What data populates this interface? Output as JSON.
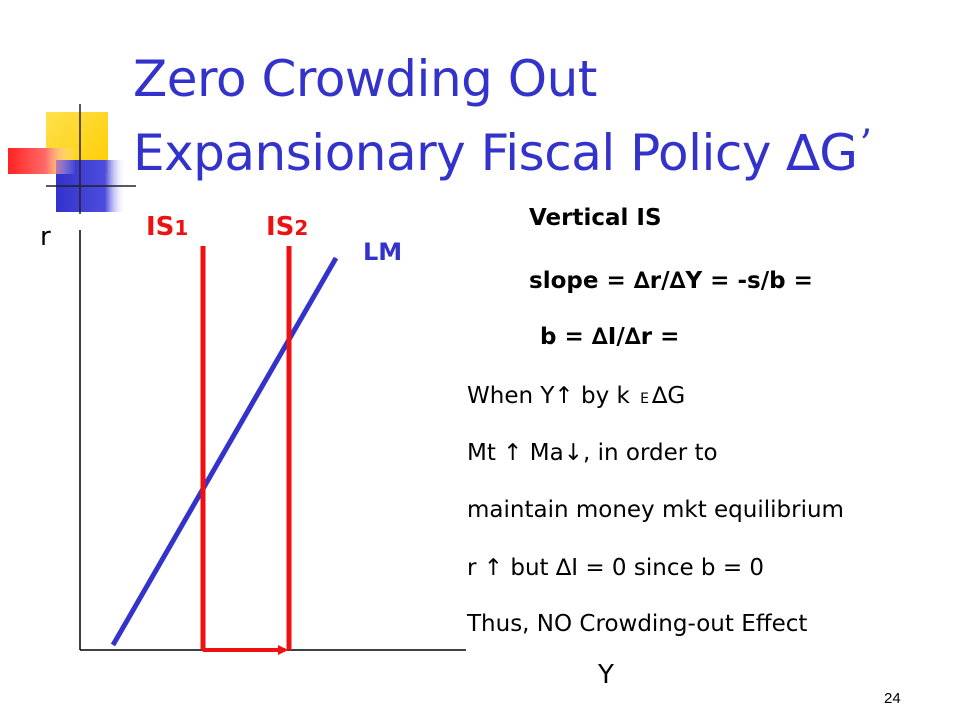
{
  "slide": {
    "title_line1": "Zero Crowding Out",
    "title_line2": "Expansionary Fiscal Policy ∆G",
    "title_prime": "’",
    "page_number": "24"
  },
  "graph": {
    "y_axis_label": "r",
    "x_axis_label": "Y",
    "is1": {
      "main": "IS",
      "sub": "1"
    },
    "is2": {
      "main": "IS",
      "sub": "2"
    },
    "lm_label": "LM"
  },
  "notes": {
    "heading": "Vertical IS",
    "slope": "slope =  ∆r/∆Y = -s/b = ",
    "b_def": "b = ∆I/∆r =",
    "line1_a": "When Y↑ by k",
    "line1_e": "E",
    "line1_b": "∆G",
    "line2": "Mt ↑ Ma↓, in order to",
    "line3": "maintain money mkt equilibrium",
    "line4": "r ↑ but ∆I = 0 since b = 0",
    "line5": "Thus, NO Crowding-out Effect"
  },
  "colors": {
    "title": "#3333cc",
    "is_curves": "#ee1111",
    "lm_curve": "#3333cc",
    "deco_yellow": "#ffcc00",
    "deco_blue": "#3333cc",
    "deco_red": "#ff3333"
  }
}
